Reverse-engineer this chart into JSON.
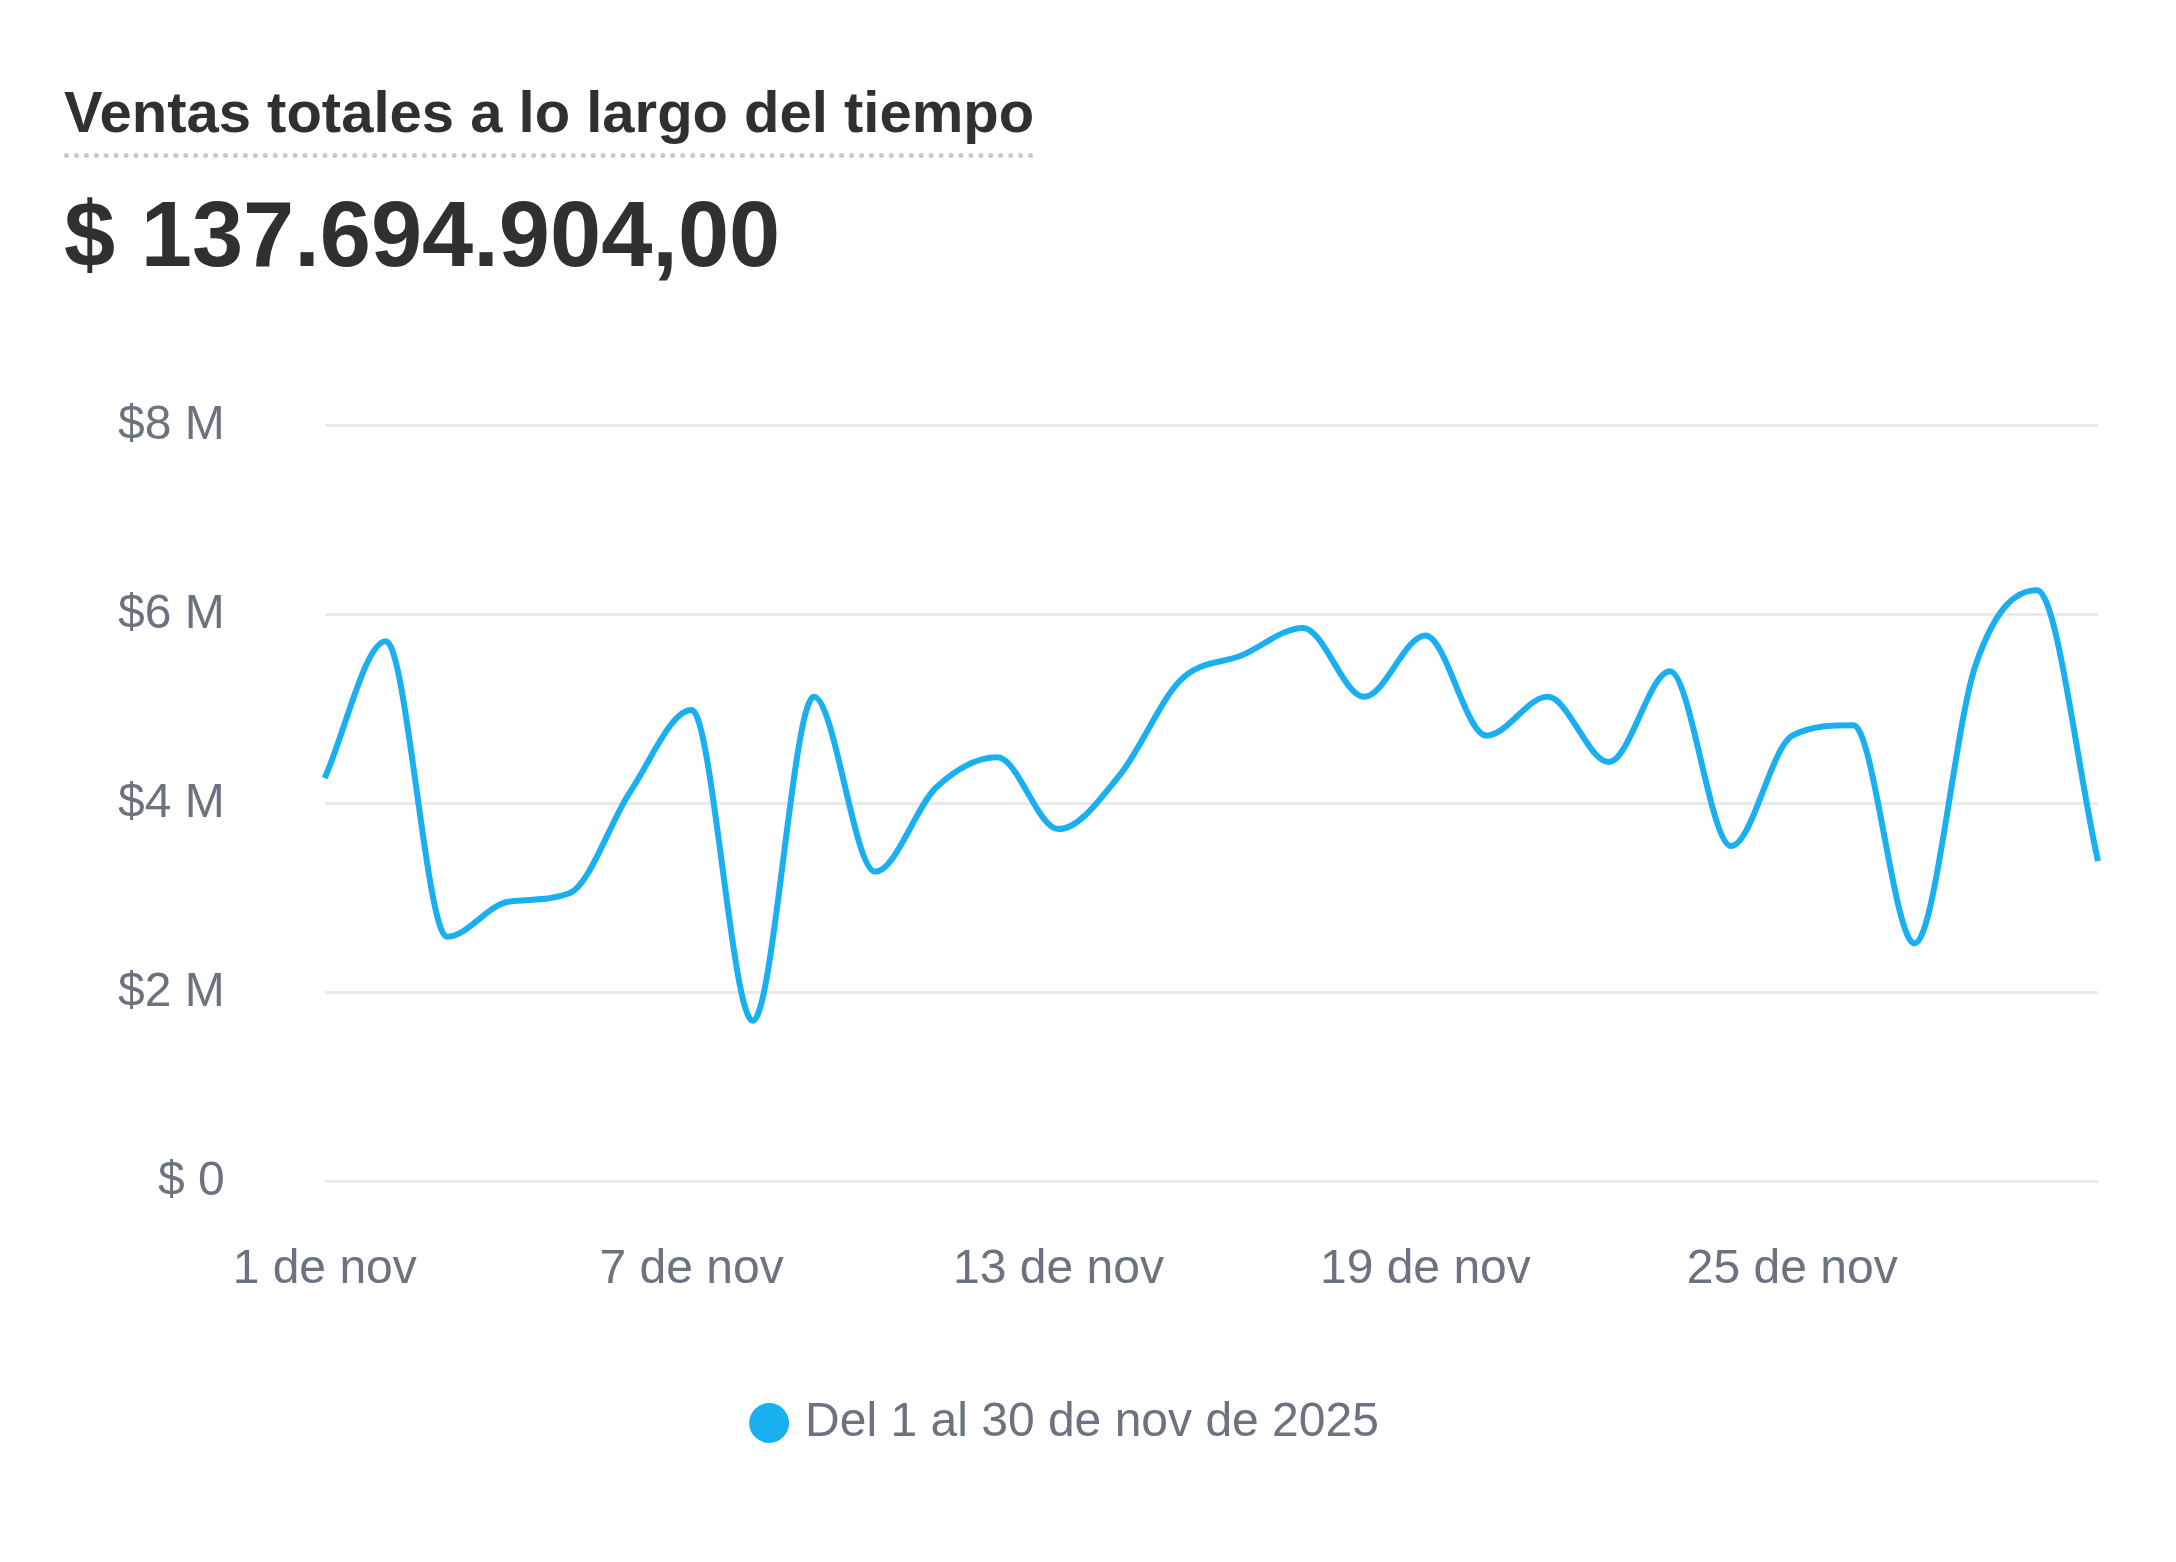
{
  "chart_data": {
    "type": "line",
    "title": "Ventas totales a lo largo del tiempo",
    "subtitle": "$ 137.694.904,00",
    "categories": [
      "1 de nov",
      null,
      null,
      null,
      null,
      null,
      "7 de nov",
      null,
      null,
      null,
      null,
      null,
      "13 de nov",
      null,
      null,
      null,
      null,
      null,
      "19 de nov",
      null,
      null,
      null,
      null,
      null,
      "25 de nov",
      null,
      null,
      null,
      null,
      null
    ],
    "series": [
      {
        "name": "Del 1 al 30 de nov de 2025",
        "color": "#1aaff0",
        "values": [
          4.27,
          5.72,
          2.59,
          2.96,
          3.05,
          4.13,
          4.99,
          1.7,
          5.13,
          3.28,
          4.17,
          4.49,
          3.73,
          4.3,
          5.31,
          5.57,
          5.86,
          5.13,
          5.78,
          4.72,
          5.13,
          4.44,
          5.4,
          3.55,
          4.72,
          4.83,
          2.52,
          5.47,
          6.26,
          3.39
        ]
      }
    ],
    "ylim": [
      0,
      8
    ],
    "yticks": [
      {
        "value": 0,
        "label": "$ 0"
      },
      {
        "value": 2,
        "label": "$2 M"
      },
      {
        "value": 4,
        "label": "$4 M"
      },
      {
        "value": 6,
        "label": "$6 M"
      },
      {
        "value": 8,
        "label": "$8 M"
      }
    ],
    "grid": "y",
    "legend": "bottom",
    "marker": "none",
    "line_style": "solid"
  }
}
